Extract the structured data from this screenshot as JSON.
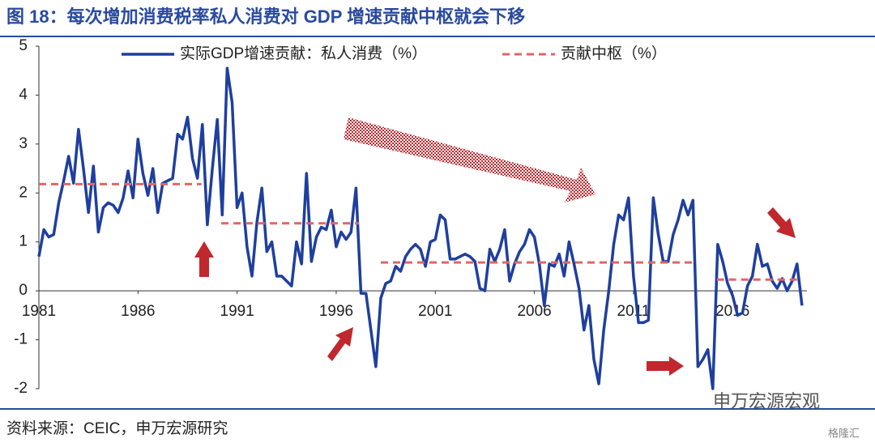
{
  "chart_data": {
    "type": "line",
    "title": "图 18：每次增加消费税率私人消费对 GDP 增速贡献中枢就会下移",
    "source": "资料来源：CEIC，申万宏源研究",
    "watermark": "申万宏源宏观",
    "watermark_logo": "格隆汇",
    "xlim": [
      1981,
      2019.75
    ],
    "xticks": [
      1981,
      1986,
      1991,
      1996,
      2001,
      2006,
      2011,
      2016
    ],
    "ylim": [
      -2,
      5
    ],
    "yticks": [
      -2,
      -1,
      0,
      1,
      2,
      3,
      4,
      5
    ],
    "series": [
      {
        "name": "实际GDP增速贡献：私人消费（%）",
        "color": "#1f3f9e",
        "style": "solid",
        "x": [
          1981,
          1981.25,
          1981.5,
          1981.75,
          1982,
          1982.25,
          1982.5,
          1982.75,
          1983,
          1983.25,
          1983.5,
          1983.75,
          1984,
          1984.25,
          1984.5,
          1984.75,
          1985,
          1985.25,
          1985.5,
          1985.75,
          1986,
          1986.25,
          1986.5,
          1986.75,
          1987,
          1987.25,
          1987.5,
          1987.75,
          1988,
          1988.25,
          1988.5,
          1988.75,
          1989,
          1989.25,
          1989.5,
          1989.75,
          1990,
          1990.25,
          1990.5,
          1990.75,
          1991,
          1991.25,
          1991.5,
          1991.75,
          1992,
          1992.25,
          1992.5,
          1992.75,
          1993,
          1993.25,
          1993.5,
          1993.75,
          1994,
          1994.25,
          1994.5,
          1994.75,
          1995,
          1995.25,
          1995.5,
          1995.75,
          1996,
          1996.25,
          1996.5,
          1996.75,
          1997,
          1997.25,
          1997.5,
          1997.75,
          1998,
          1998.25,
          1998.5,
          1998.75,
          1999,
          1999.25,
          1999.5,
          1999.75,
          2000,
          2000.25,
          2000.5,
          2000.75,
          2001,
          2001.25,
          2001.5,
          2001.75,
          2002,
          2002.25,
          2002.5,
          2002.75,
          2003,
          2003.25,
          2003.5,
          2003.75,
          2004,
          2004.25,
          2004.5,
          2004.75,
          2005,
          2005.25,
          2005.5,
          2005.75,
          2006,
          2006.25,
          2006.5,
          2006.75,
          2007,
          2007.25,
          2007.5,
          2007.75,
          2008,
          2008.25,
          2008.5,
          2008.75,
          2009,
          2009.25,
          2009.5,
          2009.75,
          2010,
          2010.25,
          2010.5,
          2010.75,
          2011,
          2011.25,
          2011.5,
          2011.75,
          2012,
          2012.25,
          2012.5,
          2012.75,
          2013,
          2013.25,
          2013.5,
          2013.75,
          2014,
          2014.25,
          2014.5,
          2014.75,
          2015,
          2015.25,
          2015.5,
          2015.75,
          2016,
          2016.25,
          2016.5,
          2016.75,
          2017,
          2017.25,
          2017.5,
          2017.75,
          2018,
          2018.25,
          2018.5,
          2018.75,
          2019,
          2019.25,
          2019.5
        ],
        "values": [
          0.7,
          1.25,
          1.1,
          1.15,
          1.8,
          2.25,
          2.75,
          2.2,
          3.3,
          2.5,
          1.6,
          2.55,
          1.2,
          1.7,
          1.8,
          1.75,
          1.6,
          1.9,
          2.45,
          1.9,
          3.1,
          2.4,
          1.95,
          2.5,
          1.6,
          2.2,
          2.25,
          2.3,
          3.2,
          3.1,
          3.55,
          2.7,
          2.3,
          3.4,
          1.35,
          2.5,
          3.5,
          1.55,
          4.55,
          3.85,
          1.7,
          2.0,
          0.9,
          0.3,
          1.4,
          2.1,
          0.8,
          1.0,
          0.3,
          0.3,
          0.2,
          0.1,
          1.0,
          0.55,
          2.4,
          0.6,
          1.1,
          1.3,
          1.25,
          1.65,
          0.9,
          1.2,
          1.05,
          1.2,
          2.1,
          -0.05,
          -0.05,
          -0.8,
          -1.55,
          -0.15,
          0.15,
          0.2,
          0.5,
          0.4,
          0.7,
          0.85,
          0.95,
          0.85,
          0.5,
          1.0,
          1.05,
          1.55,
          1.45,
          0.65,
          0.65,
          0.7,
          0.75,
          0.7,
          0.6,
          0.05,
          0.0,
          0.85,
          0.6,
          0.85,
          1.25,
          0.2,
          0.55,
          0.8,
          0.95,
          1.25,
          1.1,
          0.55,
          -0.3,
          0.55,
          0.5,
          0.75,
          0.3,
          1.0,
          0.55,
          0.05,
          -0.8,
          -0.3,
          -1.4,
          -1.9,
          -0.8,
          0.0,
          0.95,
          1.55,
          1.45,
          1.9,
          0.3,
          -0.65,
          -0.65,
          -0.6,
          1.9,
          1.15,
          0.6,
          0.6,
          1.15,
          1.45,
          1.85,
          1.55,
          1.85,
          -1.55,
          -1.4,
          -1.2,
          -2.0,
          0.95,
          0.6,
          0.15,
          -0.1,
          -0.5,
          -0.45,
          0.1,
          0.3,
          0.95,
          0.5,
          0.55,
          0.2,
          0.05,
          0.25,
          0.0,
          0.2,
          0.55,
          -0.3
        ]
      },
      {
        "name": "贡献中枢（%）",
        "color": "#e06666",
        "style": "dashed",
        "x": [
          1981,
          1989.2,
          1989.2,
          1990.2,
          1997.15,
          1997.15,
          1998.25,
          2014,
          2014,
          2015.2,
          2019.5
        ],
        "values": [
          2.18,
          2.18,
          null,
          1.38,
          1.38,
          null,
          0.58,
          0.58,
          null,
          0.23,
          0.23
        ]
      }
    ]
  }
}
